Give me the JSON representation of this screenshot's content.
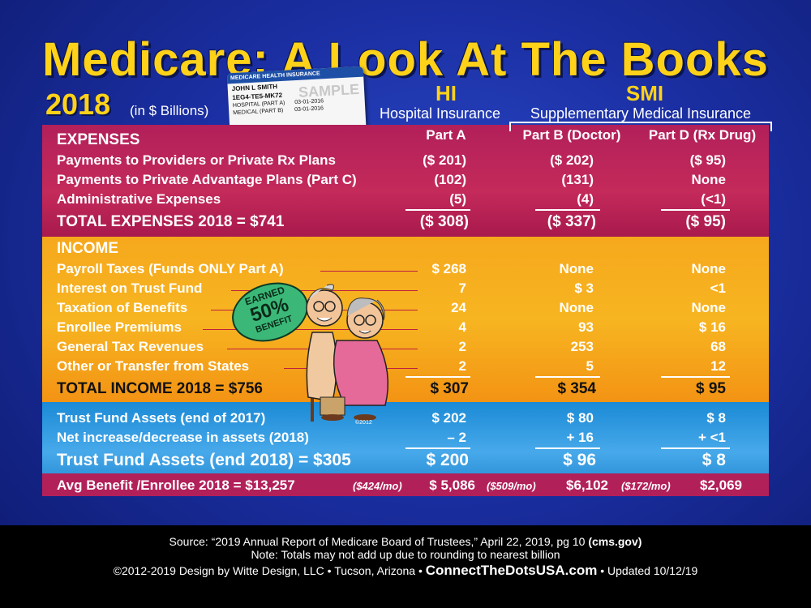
{
  "title": "Medicare: A Look At The Books",
  "year": "2018",
  "units": "(in $ Billions)",
  "card": {
    "header": "MEDICARE HEALTH INSURANCE",
    "name": "JOHN L SMITH",
    "number": "1EG4-TE5-MK72",
    "hospital": "HOSPITAL (PART A)",
    "medical": "MEDICAL (PART B)",
    "date1": "03-01-2016",
    "date2": "03-01-2016",
    "watermark": "SAMPLE"
  },
  "badge": {
    "top": "EARNED",
    "pct": "50%",
    "bottom": "BENEFIT"
  },
  "headers": {
    "hi": "HI",
    "hi_sub": "Hospital Insurance",
    "smi": "SMI",
    "smi_sub": "Supplementary Medical Insurance",
    "partA": "Part A",
    "partB": "Part B (Doctor)",
    "partD": "Part D (Rx Drug)"
  },
  "expenses": {
    "heading": "EXPENSES",
    "rows": [
      {
        "label": "Payments to Providers or Private Rx Plans",
        "a": "($ 201)",
        "b": "($ 202)",
        "d": "($ 95)"
      },
      {
        "label": "Payments to Private Advantage Plans (Part C)",
        "a": "(102)",
        "b": "(131)",
        "d": "None"
      },
      {
        "label": "Administrative Expenses",
        "a": "(5)",
        "b": "(4)",
        "d": "(<1)"
      }
    ],
    "total": {
      "label": "TOTAL EXPENSES 2018 = $741",
      "a": "($ 308)",
      "b": "($ 337)",
      "d": "($ 95)"
    }
  },
  "income": {
    "heading": "INCOME",
    "rows": [
      {
        "label": "Payroll Taxes (Funds ONLY Part A)",
        "a": "$ 268",
        "b": "None",
        "d": "None"
      },
      {
        "label": "Interest on Trust Fund",
        "a": "7",
        "b": "$ 3",
        "d": "<1"
      },
      {
        "label": "Taxation of Benefits",
        "a": "24",
        "b": "None",
        "d": "None"
      },
      {
        "label": "Enrollee Premiums",
        "a": "4",
        "b": "93",
        "d": "$ 16"
      },
      {
        "label": "General Tax Revenues",
        "a": "2",
        "b": "253",
        "d": "68"
      },
      {
        "label": "Other or Transfer from States",
        "a": "2",
        "b": "5",
        "d": "12"
      }
    ],
    "total": {
      "label": "TOTAL INCOME 2018 = $756",
      "a": "$ 307",
      "b": "$ 354",
      "d": "$ 95"
    }
  },
  "trust": {
    "rows": [
      {
        "label": "Trust Fund Assets (end of 2017)",
        "a": "$ 202",
        "b": "$ 80",
        "d": "$ 8"
      },
      {
        "label": "Net increase/decrease in assets (2018)",
        "a": "– 2",
        "b": "+ 16",
        "d": "+ <1"
      }
    ],
    "total": {
      "label": "Trust Fund Assets (end 2018) = $305",
      "a": "$ 200",
      "b": "$ 96",
      "d": "$ 8"
    }
  },
  "avg": {
    "label": "Avg Benefit /Enrollee 2018 = $13,257",
    "a_mo": "($424/mo)",
    "a": "$ 5,086",
    "b_mo": "($509/mo)",
    "b": "$6,102",
    "d_mo": "($172/mo)",
    "d": "$2,069"
  },
  "copyright_small": "©2012",
  "footer": {
    "source_pre": "Source: “2019 Annual Report of Medicare Board of Trustees,” April 22, 2019, pg 10",
    "source_site": "(cms.gov)",
    "note": "Note: Totals may not add up due to rounding to nearest billion",
    "design": "©2012-2019 Design by Witte Design, LLC • Tucson, Arizona •",
    "site": "ConnectTheDotsUSA.com",
    "updated": "• Updated 10/12/19"
  }
}
